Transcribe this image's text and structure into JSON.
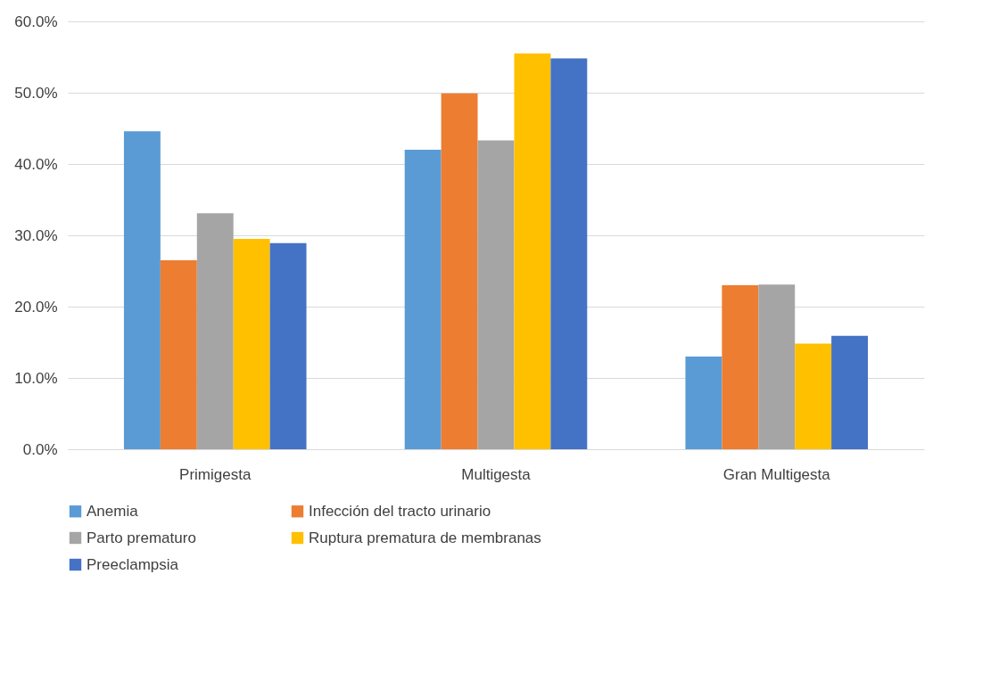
{
  "chart_data": {
    "type": "bar",
    "categories": [
      "Primigesta",
      "Multigesta",
      "Gran Multigesta"
    ],
    "series": [
      {
        "name": "Anemia",
        "color": "#5b9bd5",
        "values": [
          44.6,
          42.0,
          13.0
        ]
      },
      {
        "name": "Infección del tracto urinario",
        "color": "#ed7d31",
        "values": [
          26.5,
          49.9,
          23.0
        ]
      },
      {
        "name": "Parto  prematuro",
        "color": "#a5a5a5",
        "values": [
          33.1,
          43.3,
          23.1
        ]
      },
      {
        "name": "Ruptura prematura de membranas",
        "color": "#ffc000",
        "values": [
          29.5,
          55.5,
          14.8
        ]
      },
      {
        "name": "Preeclampsia",
        "color": "#4472c4",
        "values": [
          28.9,
          54.8,
          15.9
        ]
      }
    ],
    "ylim": [
      0,
      60
    ],
    "yticks": [
      {
        "value": 0,
        "label": "0.0%"
      },
      {
        "value": 10,
        "label": "10.0%"
      },
      {
        "value": 20,
        "label": "20.0%"
      },
      {
        "value": 30,
        "label": "30.0%"
      },
      {
        "value": 40,
        "label": "40.0%"
      },
      {
        "value": 50,
        "label": "50.0%"
      },
      {
        "value": 60,
        "label": "60.0%"
      }
    ],
    "grid": "y",
    "legend": "bottom"
  }
}
